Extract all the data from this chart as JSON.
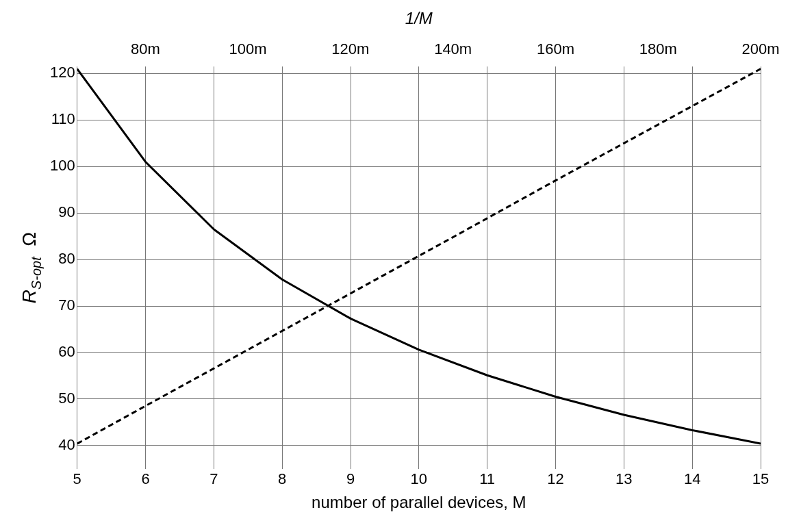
{
  "chart_data": {
    "type": "line",
    "xlabel": "number of parallel devices, M",
    "x2label": "1/M",
    "ylabel": "R$_{S-opt}$  Ω",
    "xlim": [
      5,
      15
    ],
    "xticks": [
      5,
      6,
      7,
      8,
      9,
      10,
      11,
      12,
      13,
      14,
      15
    ],
    "x2lim": [
      66.7,
      200
    ],
    "x2ticks": [
      {
        "value": 80,
        "label": "80m"
      },
      {
        "value": 100,
        "label": "100m"
      },
      {
        "value": 120,
        "label": "120m"
      },
      {
        "value": 140,
        "label": "140m"
      },
      {
        "value": 160,
        "label": "160m"
      },
      {
        "value": 180,
        "label": "180m"
      },
      {
        "value": 200,
        "label": "200m"
      }
    ],
    "ylim": [
      35,
      121.5
    ],
    "yticks": [
      40,
      50,
      60,
      70,
      80,
      90,
      100,
      110,
      120
    ],
    "grid": true,
    "legend": false,
    "marker": "none",
    "series": [
      {
        "color": "#000000",
        "line_style": "solid",
        "x": [
          5,
          6,
          7,
          8,
          9,
          10,
          11,
          12,
          13,
          14,
          15
        ],
        "values": [
          121,
          101,
          86.5,
          75.7,
          67.3,
          60.6,
          55.1,
          50.5,
          46.6,
          43.3,
          40.4
        ]
      },
      {
        "color": "#000000",
        "line_style": "dashed",
        "axis": "x2",
        "x": [
          66.7,
          80,
          100,
          120,
          140,
          160,
          180,
          200
        ],
        "values": [
          40.4,
          48.5,
          60.6,
          72.7,
          84.8,
          97,
          109,
          121
        ]
      }
    ]
  }
}
